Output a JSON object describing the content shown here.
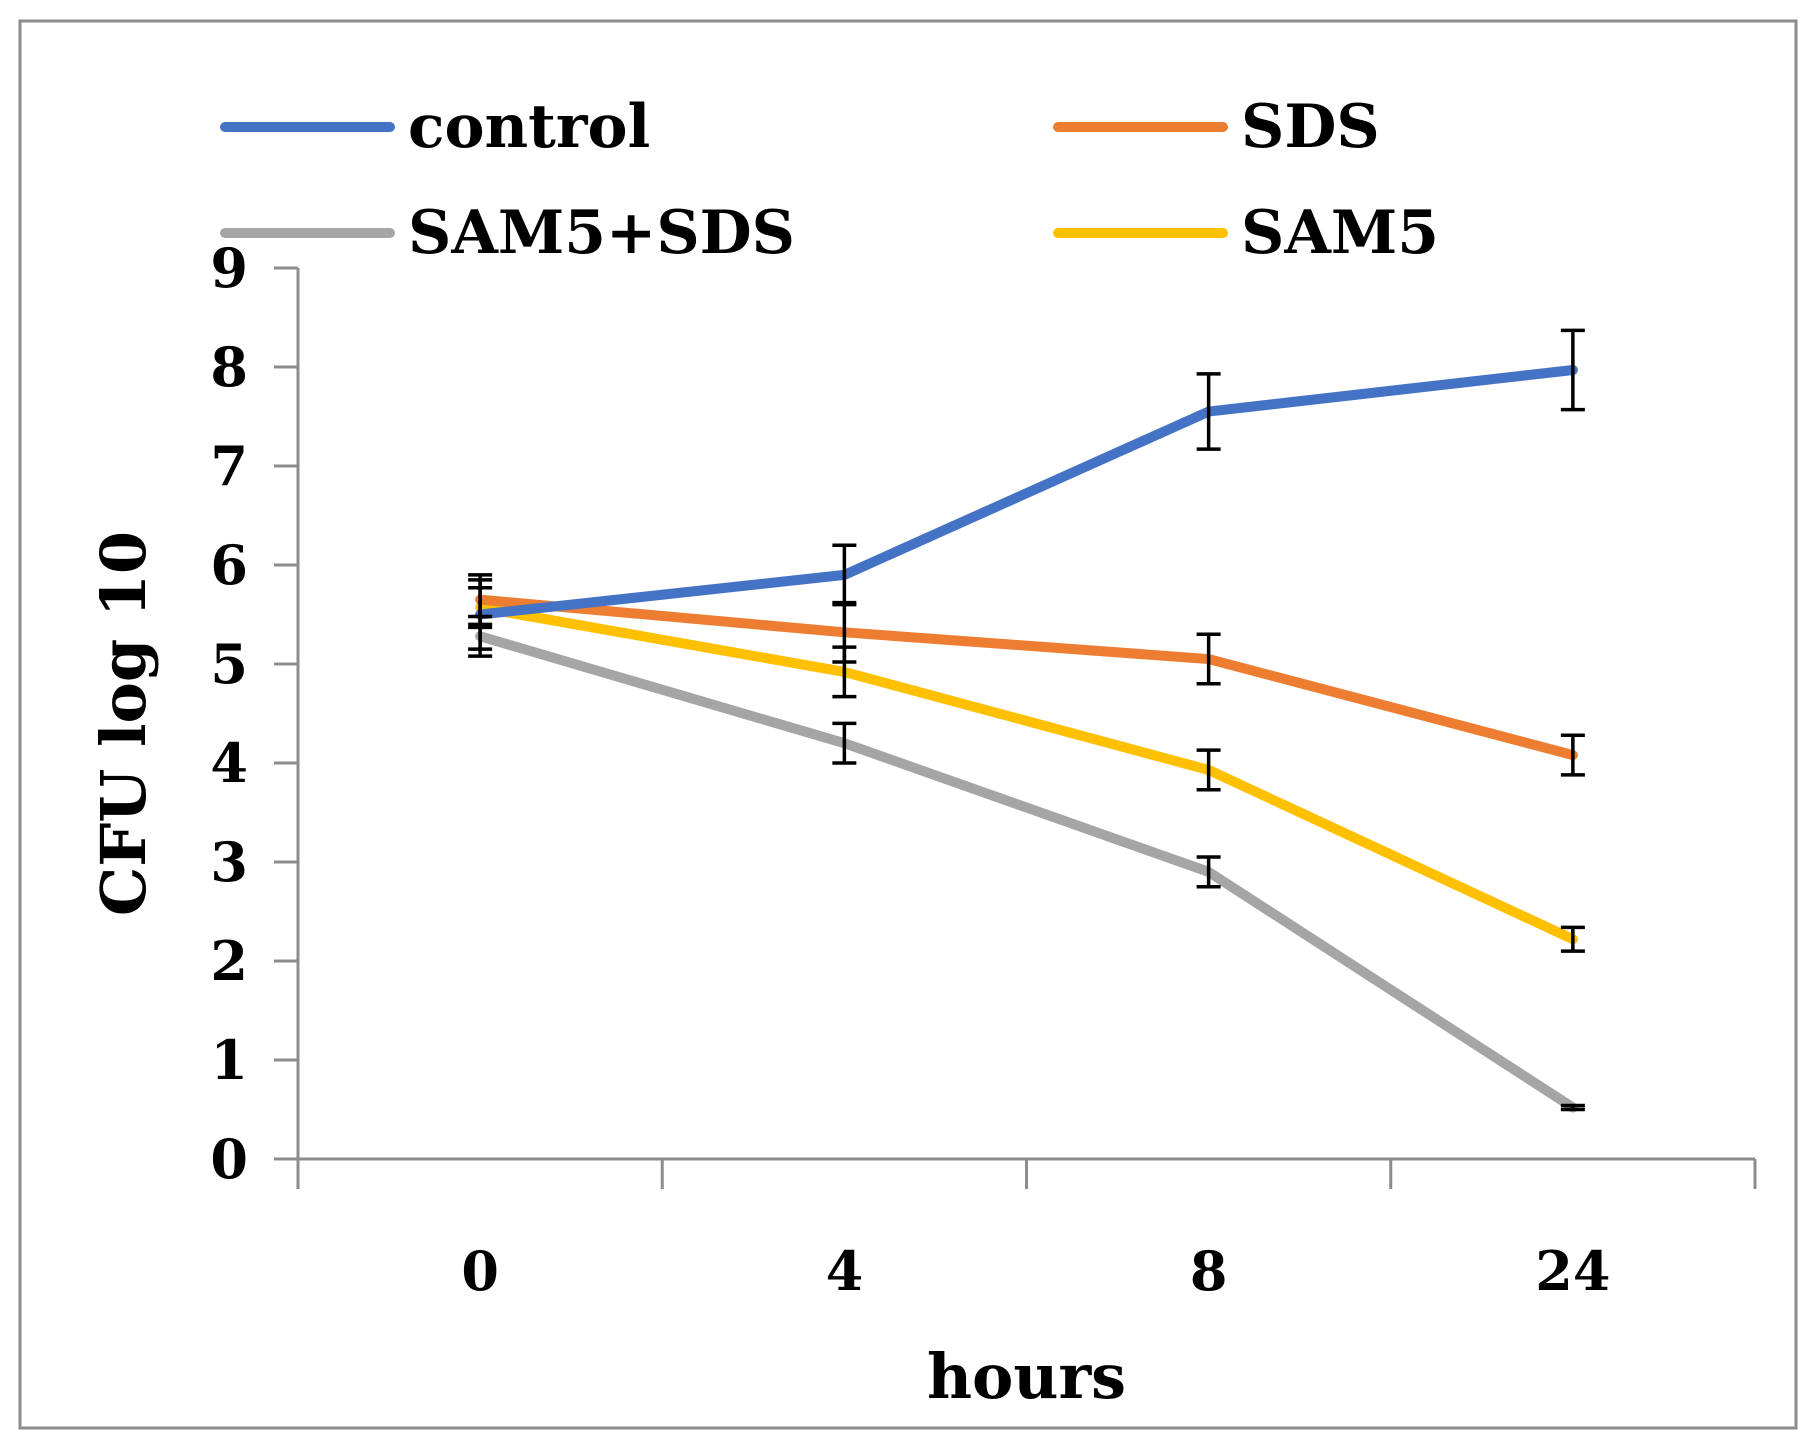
{
  "chart_data": {
    "type": "line",
    "title": "",
    "xlabel": "hours",
    "ylabel": "CFU log 10",
    "categories": [
      "0",
      "4",
      "8",
      "24"
    ],
    "ylim": [
      0,
      9
    ],
    "yticks": [
      "0",
      "1",
      "2",
      "3",
      "4",
      "5",
      "6",
      "7",
      "8",
      "9"
    ],
    "grid": false,
    "legend_position": "top",
    "series": [
      {
        "name": "control",
        "color": "#4472C4",
        "values": [
          5.5,
          5.9,
          7.55,
          7.97
        ],
        "errors": [
          0.35,
          0.3,
          0.38,
          0.4
        ]
      },
      {
        "name": "SDS",
        "color": "#ED7D31",
        "values": [
          5.65,
          5.32,
          5.05,
          4.08
        ],
        "errors": [
          0.25,
          0.3,
          0.25,
          0.2
        ]
      },
      {
        "name": "SAM5+SDS",
        "color": "#A5A5A5",
        "values": [
          5.28,
          4.2,
          2.9,
          0.52
        ],
        "errors": [
          0.2,
          0.2,
          0.15,
          0.02
        ]
      },
      {
        "name": "SAM5",
        "color": "#FFC000",
        "values": [
          5.57,
          4.92,
          3.93,
          2.22
        ],
        "errors": [
          0.2,
          0.25,
          0.2,
          0.12
        ]
      }
    ]
  }
}
